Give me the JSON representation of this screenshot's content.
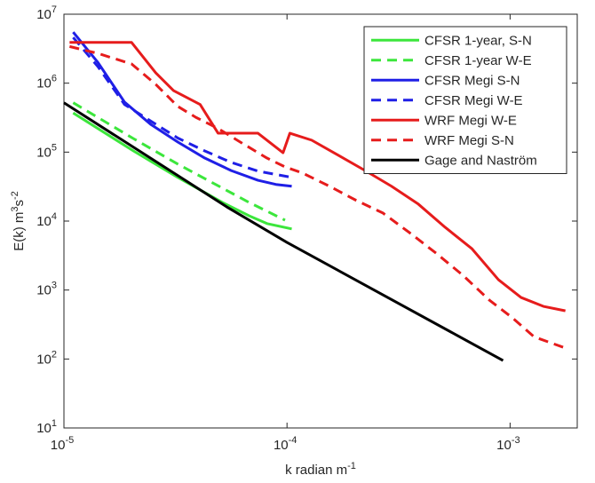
{
  "chart_data": {
    "type": "line",
    "xlog": true,
    "ylog": true,
    "xlim": [
      1e-05,
      0.002
    ],
    "ylim": [
      10,
      10000000
    ],
    "xticks": [
      {
        "value": 1e-05,
        "label": "10",
        "exponent": "-5"
      },
      {
        "value": 0.0001,
        "label": "10",
        "exponent": "-4"
      },
      {
        "value": 0.001,
        "label": "10",
        "exponent": "-3"
      }
    ],
    "yticks": [
      {
        "value": 10,
        "label": "10",
        "exponent": "1"
      },
      {
        "value": 100,
        "label": "10",
        "exponent": "2"
      },
      {
        "value": 1000,
        "label": "10",
        "exponent": "3"
      },
      {
        "value": 10000,
        "label": "10",
        "exponent": "4"
      },
      {
        "value": 100000,
        "label": "10",
        "exponent": "5"
      },
      {
        "value": 1000000,
        "label": "10",
        "exponent": "6"
      },
      {
        "value": 10000000,
        "label": "10",
        "exponent": "7"
      }
    ],
    "xlabel": [
      {
        "text": "k radian m"
      },
      {
        "text": "-1",
        "sup": true
      }
    ],
    "ylabel": [
      {
        "text": "E(k) m"
      },
      {
        "text": "3",
        "sup": true
      },
      {
        "text": "s"
      },
      {
        "text": "-2",
        "sup": true
      }
    ],
    "legend": "upper right",
    "series": [
      {
        "name": "CFSR 1-year, S-N",
        "color": "#3ce63c",
        "dash": false,
        "x": [
          1.1e-05,
          2.05e-05,
          3.24e-05,
          5.14e-05,
          6.77e-05,
          8.13e-05,
          0.000105
        ],
        "values": [
          370000,
          104000,
          43000,
          18600,
          11900,
          9200,
          7700
        ]
      },
      {
        "name": "CFSR 1-year W-E",
        "color": "#3ce63c",
        "dash": true,
        "x": [
          1.1e-05,
          2.05e-05,
          3.24e-05,
          5.14e-05,
          6.77e-05,
          8.13e-05,
          9.8e-05
        ],
        "values": [
          520000,
          157000,
          67000,
          30000,
          18600,
          13900,
          10300
        ]
      },
      {
        "name": "CFSR Megi S-N",
        "color": "#1f1fe6",
        "dash": false,
        "x": [
          1.1e-05,
          1.42e-05,
          1.87e-05,
          2.46e-05,
          3.24e-05,
          4.28e-05,
          5.62e-05,
          7.41e-05,
          8.91e-05,
          0.000105
        ],
        "values": [
          5500000,
          2000000,
          530000,
          250000,
          140000,
          82000,
          54000,
          39000,
          34000,
          32000
        ]
      },
      {
        "name": "CFSR Megi W-E",
        "color": "#1f1fe6",
        "dash": true,
        "x": [
          1.1e-05,
          1.42e-05,
          1.87e-05,
          2.46e-05,
          3.24e-05,
          4.28e-05,
          5.62e-05,
          7.41e-05,
          0.000105
        ],
        "values": [
          4600000,
          1740000,
          490000,
          280000,
          160000,
          104000,
          71000,
          53000,
          43000
        ]
      },
      {
        "name": "WRF Megi W-E",
        "color": "#e61c1c",
        "dash": false,
        "x": [
          1.06e-05,
          2.01e-05,
          2.58e-05,
          3.1e-05,
          4.08e-05,
          4.91e-05,
          7.41e-05,
          9.6e-05,
          0.000103,
          0.000129,
          0.00017,
          0.000224,
          0.000294,
          0.000388,
          0.000512,
          0.000673,
          0.000887,
          0.00112,
          0.00141,
          0.00177
        ],
        "values": [
          3900000,
          3900000,
          1410000,
          780000,
          490000,
          188000,
          188000,
          98000,
          188000,
          149000,
          90000,
          54000,
          32000,
          17600,
          8100,
          4000,
          1410,
          780,
          580,
          500
        ]
      },
      {
        "name": "WRF Megi S-N",
        "color": "#e61c1c",
        "dash": true,
        "x": [
          1.06e-05,
          1.42e-05,
          2.01e-05,
          2.58e-05,
          3.24e-05,
          3.9e-05,
          4.91e-05,
          6.17e-05,
          8.13e-05,
          9.8e-05,
          0.000117,
          0.000155,
          0.000204,
          0.000269,
          0.000354,
          0.000467,
          0.000614,
          0.000809,
          0.00102,
          0.00128,
          0.00177
        ],
        "values": [
          3400000,
          2700000,
          1900000,
          960000,
          460000,
          320000,
          220000,
          140000,
          82000,
          61000,
          50000,
          32000,
          20000,
          13100,
          6800,
          3400,
          1640,
          710,
          400,
          210,
          144
        ]
      },
      {
        "name": "Gage and Naström",
        "color": "#000000",
        "dash": false,
        "x": [
          1e-05,
          5.38e-05,
          0.0001,
          0.00093
        ],
        "values": [
          520000,
          16000,
          4900,
          95
        ]
      }
    ]
  }
}
